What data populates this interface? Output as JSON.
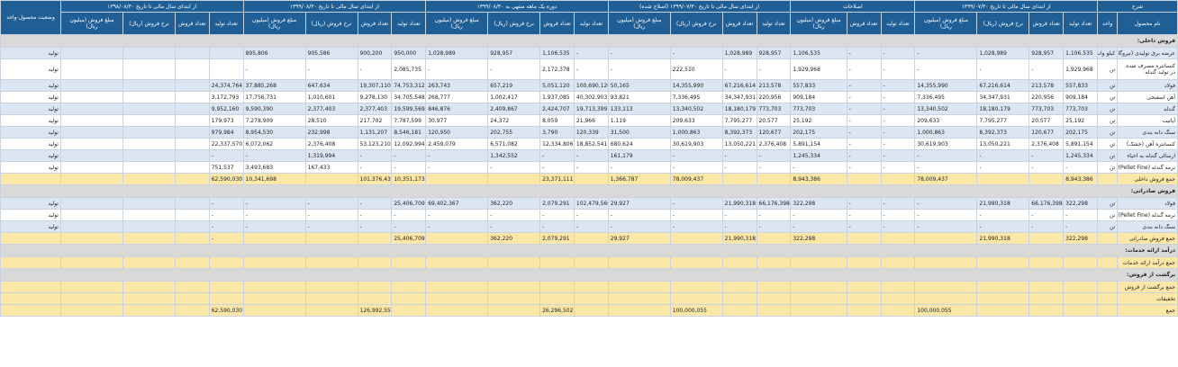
{
  "headers": {
    "top": [
      "شرح",
      "از ابتدای سال مالی تا تاریخ ۱۳۹۹/۰۷/۳۰",
      "اصلاحات",
      "از ابتدای سال مالی تا تاریخ ۱۳۹۹/۰۷/۳۰ (اصلاح شده)",
      "دوره یک ماهه منتهی به ۱۳۹۹/۰۸/۳۰",
      "از ابتدای سال مالی تا تاریخ ۱۳۹۹/۰۸/۳۰",
      "از ابتدای سال مالی تا تاریخ ۱۳۹۸/۰۸/۳۰",
      "وضعیت محصول-واحد"
    ],
    "sub": {
      "name": "نام محصول",
      "unit": "واحد",
      "prod": "تعداد تولید",
      "sales": "تعداد فروش",
      "rate": "نرخ فروش (ریال)",
      "amount": "مبلغ فروش (میلیون ریال)"
    }
  },
  "rows": [
    {
      "kind": "section",
      "name": "فروش داخلی:"
    },
    {
      "kind": "odd",
      "name": "عرضه برق تولیدی (نیروگاه)",
      "unit": "کیلو وات",
      "c": [
        "1,106,535",
        "928,957",
        "1,028,989",
        "-",
        "-",
        "-",
        "1,106,535",
        "928,957",
        "1,028,989",
        "-",
        "-",
        "-",
        "1,106,535",
        "928,957",
        "1,028,989",
        "950,000",
        "900,200",
        "905,586",
        "895,806"
      ],
      "status": "تولید"
    },
    {
      "kind": "even tall",
      "name": "کنسانتره مصرف شده در تولید گندله",
      "unit": "تن",
      "c": [
        "1,929,968",
        "-",
        "-",
        "-",
        "-",
        "-",
        "1,929,968",
        "-",
        "-",
        "222,510",
        "-",
        "-",
        "2,172,378",
        "-",
        "-",
        "2,085,735",
        "-",
        "-",
        "-"
      ],
      "status": "تولید"
    },
    {
      "kind": "odd",
      "name": "فولاد",
      "unit": "تن",
      "c": [
        "557,833",
        "213,578",
        "67,216,614",
        "14,355,990",
        "-",
        "-",
        "557,833",
        "213,578",
        "67,216,614",
        "14,355,990",
        "50,165",
        "100,690,120",
        "5,051,120",
        "657,219",
        "263,743",
        "74,753,312",
        "19,307,110",
        "647,634",
        "37,885,268",
        "24,374,764"
      ],
      "status": "تولید"
    },
    {
      "kind": "even",
      "name": "آهن اسفنجی",
      "unit": "تن",
      "c": [
        "909,184",
        "220,956",
        "34,347,931",
        "7,336,495",
        "-",
        "-",
        "909,184",
        "220,956",
        "34,347,931",
        "7,336,495",
        "93,821",
        "40,302,903",
        "1,937,085",
        "1,002,417",
        "268,777",
        "34,705,548",
        "9,278,130",
        "1,010,601",
        "17,756,731",
        "3,172,793"
      ],
      "status": "تولید"
    },
    {
      "kind": "odd",
      "name": "گندله",
      "unit": "تن",
      "c": [
        "773,703",
        "773,703",
        "18,180,179",
        "13,340,502",
        "-",
        "-",
        "773,703",
        "773,703",
        "18,180,179",
        "13,340,502",
        "133,113",
        "19,713,399",
        "2,424,707",
        "2,409,867",
        "846,876",
        "19,599,569",
        "2,377,403",
        "2,377,403",
        "9,590,390",
        "9,952,160"
      ],
      "status": "تولید"
    },
    {
      "kind": "even",
      "name": "آپاتیت",
      "unit": "تن",
      "c": [
        "25,192",
        "20,577",
        "7,795,277",
        "209,633",
        "-",
        "-",
        "25,192",
        "20,577",
        "7,795,277",
        "209,633",
        "1,119",
        "21,966",
        "8,059",
        "24,372",
        "30,977",
        "7,787,599",
        "217,702",
        "28,510",
        "7,278,909",
        "179,973"
      ],
      "status": "تولید"
    },
    {
      "kind": "odd",
      "name": "سنگ دانه بندی",
      "unit": "تن",
      "c": [
        "202,175",
        "120,677",
        "8,392,373",
        "1,000,863",
        "-",
        "-",
        "202,175",
        "120,677",
        "8,392,373",
        "1,000,863",
        "31,500",
        "120,339",
        "3,790",
        "202,755",
        "120,950",
        "8,546,181",
        "1,131,207",
        "232,998",
        "8,954,530",
        "979,984"
      ],
      "status": "تولید"
    },
    {
      "kind": "even",
      "name": "کنسانتره آهن (خشک)",
      "unit": "تن",
      "c": [
        "5,891,154",
        "2,376,408",
        "13,050,221",
        "30,619,903",
        "-",
        "-",
        "5,891,154",
        "2,376,408",
        "13,050,221",
        "30,619,903",
        "680,624",
        "18,852,541",
        "12,334,806",
        "6,571,082",
        "2,459,079",
        "12,092,994",
        "53,123,210",
        "2,376,408",
        "6,072,062",
        "22,337,570"
      ],
      "status": "تولید"
    },
    {
      "kind": "odd",
      "name": "ارسالی گندله به احیاء",
      "unit": "تن",
      "c": [
        "1,245,334",
        "-",
        "-",
        "-",
        "-",
        "-",
        "1,245,334",
        "-",
        "-",
        "-",
        "161,179",
        "-",
        "-",
        "1,342,552",
        "-",
        "-",
        "-",
        "1,319,994",
        "-",
        "-"
      ],
      "status": "تولید"
    },
    {
      "kind": "even",
      "name": "نرمه گندله (Pellet Fine)",
      "unit": "تن",
      "c": [
        "-",
        "-",
        "-",
        "-",
        "-",
        "-",
        "-",
        "-",
        "-",
        "-",
        "-",
        "-",
        "-",
        "-",
        "-",
        "-",
        "-",
        "167,433",
        "3,493,683",
        "751,537"
      ],
      "status": "تولید"
    },
    {
      "kind": "total",
      "name": "جمع فروش داخلی",
      "unit": "",
      "c": [
        "8,943,386",
        "",
        "",
        "78,009,437",
        "",
        "",
        "8,943,386",
        "",
        "",
        "78,009,437",
        "1,366,787",
        "",
        "23,371,111",
        "",
        "",
        "10,351,173",
        "101,376,438",
        "",
        "10,341,698",
        "62,590,030"
      ],
      "status": ""
    },
    {
      "kind": "section",
      "name": "فروش صادراتی:"
    },
    {
      "kind": "odd",
      "name": "فولاد",
      "unit": "تن",
      "c": [
        "322,298",
        "66,176,398",
        "21,990,318",
        "-",
        "-",
        "-",
        "322,298",
        "66,176,398",
        "21,990,318",
        "-",
        "29,927",
        "102,479,560",
        "2,079,291",
        "362,220",
        "69,402,367",
        "25,406,709",
        "-",
        "-",
        "-",
        "-"
      ],
      "status": "تولید"
    },
    {
      "kind": "even",
      "name": "نرمه گندله (Pellet Fine)",
      "unit": "تن",
      "c": [
        "-",
        "-",
        "-",
        "-",
        "-",
        "-",
        "-",
        "-",
        "-",
        "-",
        "-",
        "-",
        "-",
        "-",
        "-",
        "-",
        "-",
        "-",
        "-",
        "-"
      ],
      "status": "تولید"
    },
    {
      "kind": "odd",
      "name": "سنگ دانه بندی",
      "unit": "تن",
      "c": [
        "-",
        "-",
        "-",
        "-",
        "-",
        "-",
        "-",
        "-",
        "-",
        "-",
        "-",
        "-",
        "-",
        "-",
        "-",
        "-",
        "-",
        "-",
        "-",
        "-"
      ],
      "status": "تولید"
    },
    {
      "kind": "total",
      "name": "جمع فروش صادراتی",
      "unit": "",
      "c": [
        "322,298",
        "",
        "21,990,318",
        "",
        "",
        "",
        "322,298",
        "",
        "21,990,318",
        "",
        "29,927",
        "",
        "2,079,291",
        "362,220",
        "",
        "25,406,709",
        "",
        "",
        "",
        "-"
      ],
      "status": ""
    },
    {
      "kind": "section",
      "name": "درآمد ارائه خدمات:"
    },
    {
      "kind": "total",
      "name": "جمع درآمد ارائه خدمات",
      "unit": "",
      "c": [
        "",
        "",
        "",
        "",
        "",
        "",
        "",
        "",
        "",
        "",
        "",
        "",
        "",
        "",
        "",
        "",
        "",
        "",
        "",
        ""
      ],
      "status": ""
    },
    {
      "kind": "section",
      "name": "برگشت از فروش:"
    },
    {
      "kind": "total",
      "name": "جمع برگشت از فروش",
      "unit": "",
      "c": [
        "",
        "",
        "",
        "",
        "",
        "",
        "",
        "",
        "",
        "",
        "",
        "",
        "",
        "",
        "",
        "",
        "",
        "",
        "",
        ""
      ],
      "status": ""
    },
    {
      "kind": "total",
      "name": "تخفیفات",
      "unit": "",
      "c": [
        "",
        "",
        "",
        "",
        "",
        "",
        "",
        "",
        "",
        "",
        "",
        "",
        "",
        "",
        "",
        "",
        "",
        "",
        "",
        ""
      ],
      "status": ""
    },
    {
      "kind": "total",
      "name": "جمع",
      "unit": "",
      "c": [
        "",
        "",
        "",
        "100,000,055",
        "",
        "",
        "",
        "",
        "",
        "100,000,055",
        "",
        "",
        "26,296,502",
        "",
        "",
        "",
        "126,992,557",
        "",
        "",
        "62,590,030"
      ],
      "status": ""
    }
  ]
}
